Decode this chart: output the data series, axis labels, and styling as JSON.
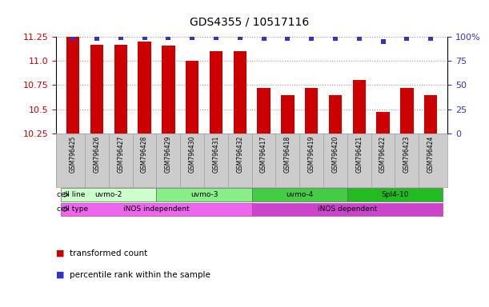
{
  "title": "GDS4355 / 10517116",
  "samples": [
    "GSM796425",
    "GSM796426",
    "GSM796427",
    "GSM796428",
    "GSM796429",
    "GSM796430",
    "GSM796431",
    "GSM796432",
    "GSM796417",
    "GSM796418",
    "GSM796419",
    "GSM796420",
    "GSM796421",
    "GSM796422",
    "GSM796423",
    "GSM796424"
  ],
  "bar_values": [
    11.25,
    11.17,
    11.17,
    11.2,
    11.16,
    11.0,
    11.1,
    11.1,
    10.72,
    10.65,
    10.72,
    10.65,
    10.8,
    10.47,
    10.72,
    10.65
  ],
  "percentile_values": [
    99,
    98,
    99,
    99,
    99,
    99,
    99,
    99,
    98,
    98,
    98,
    98,
    98,
    95,
    98,
    98
  ],
  "bar_color": "#cc0000",
  "dot_color": "#3333cc",
  "ylim_left": [
    10.25,
    11.25
  ],
  "ylim_right": [
    0,
    100
  ],
  "yticks_left": [
    10.25,
    10.5,
    10.75,
    11.0,
    11.25
  ],
  "yticks_right": [
    0,
    25,
    50,
    75,
    100
  ],
  "ytick_labels_right": [
    "0",
    "25",
    "50",
    "75",
    "100%"
  ],
  "cell_lines": [
    {
      "label": "uvmo-2",
      "start": 0,
      "end": 4,
      "color": "#ccffcc"
    },
    {
      "label": "uvmo-3",
      "start": 4,
      "end": 8,
      "color": "#88ee88"
    },
    {
      "label": "uvmo-4",
      "start": 8,
      "end": 12,
      "color": "#44cc44"
    },
    {
      "label": "Spl4-10",
      "start": 12,
      "end": 16,
      "color": "#22bb22"
    }
  ],
  "cell_types": [
    {
      "label": "iNOS independent",
      "start": 0,
      "end": 8,
      "color": "#ee66ee"
    },
    {
      "label": "iNOS dependent",
      "start": 8,
      "end": 16,
      "color": "#cc44cc"
    }
  ],
  "legend_bar_label": "transformed count",
  "legend_dot_label": "percentile rank within the sample",
  "background_color": "#ffffff",
  "grid_color": "#999999",
  "tick_color_left": "#cc0000",
  "tick_color_right": "#3333cc",
  "sample_bg_color": "#cccccc",
  "sample_border_color": "#999999"
}
